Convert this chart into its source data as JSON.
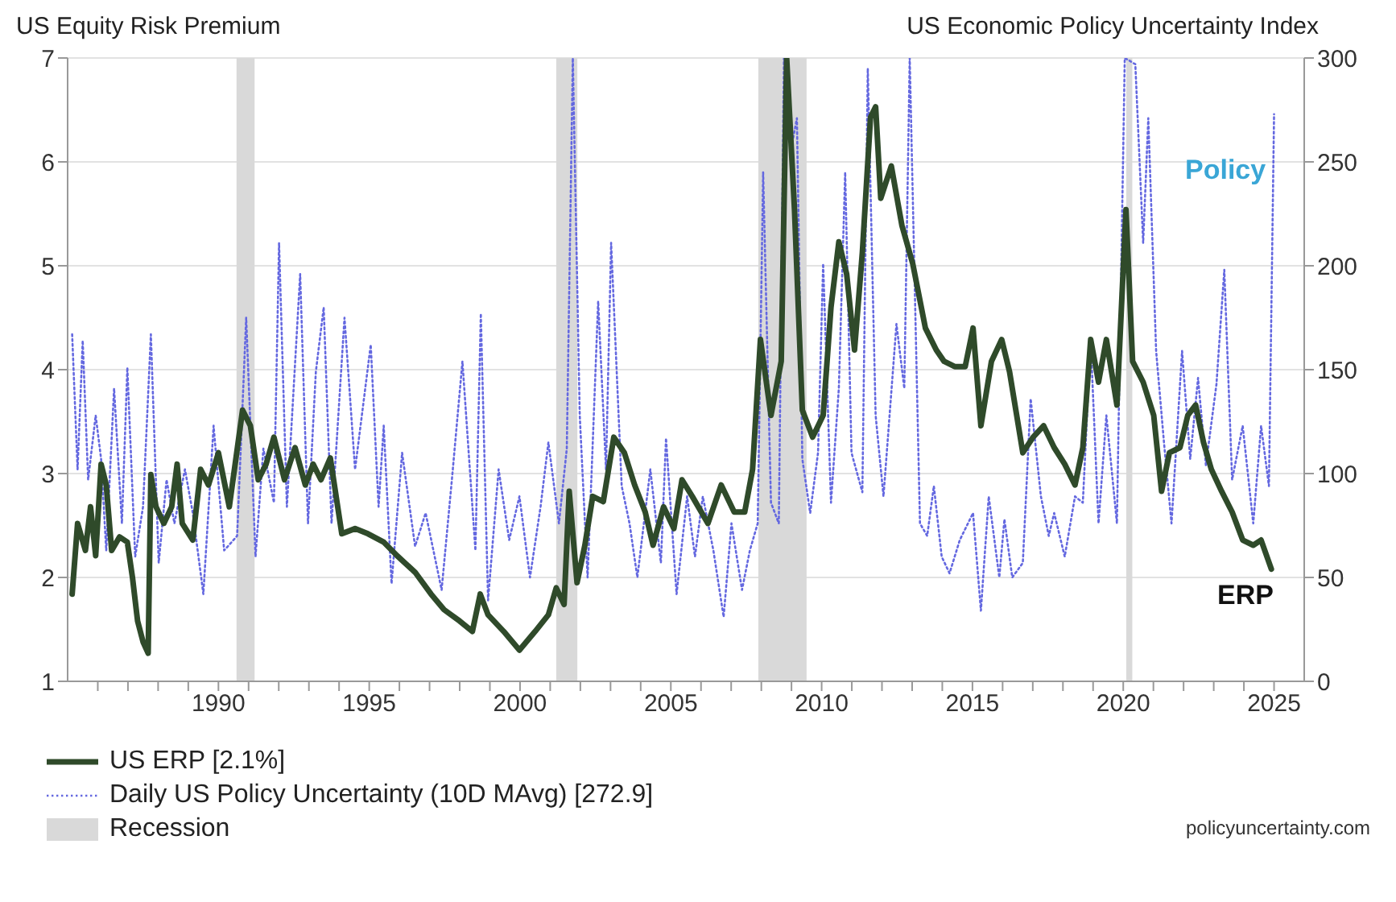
{
  "chart_data": {
    "type": "line",
    "ylabel": "US Equity Risk Premium",
    "y2label": "US Economic Policy Uncertainty Index",
    "xlim": [
      1985,
      2026
    ],
    "xticks": [
      {
        "value": 1986,
        "label": null
      },
      {
        "value": 1987,
        "label": null
      },
      {
        "value": 1988,
        "label": null
      },
      {
        "value": 1989,
        "label": null
      },
      1990,
      {
        "value": 1991,
        "label": null
      },
      {
        "value": 1992,
        "label": null
      },
      {
        "value": 1993,
        "label": null
      },
      {
        "value": 1994,
        "label": null
      },
      1995,
      {
        "value": 1996,
        "label": null
      },
      {
        "value": 1997,
        "label": null
      },
      {
        "value": 1998,
        "label": null
      },
      {
        "value": 1999,
        "label": null
      },
      2000,
      {
        "value": 2001,
        "label": null
      },
      {
        "value": 2002,
        "label": null
      },
      {
        "value": 2003,
        "label": null
      },
      {
        "value": 2004,
        "label": null
      },
      2005,
      {
        "value": 2006,
        "label": null
      },
      {
        "value": 2007,
        "label": null
      },
      {
        "value": 2008,
        "label": null
      },
      {
        "value": 2009,
        "label": null
      },
      2010,
      {
        "value": 2011,
        "label": null
      },
      {
        "value": 2012,
        "label": null
      },
      {
        "value": 2013,
        "label": null
      },
      {
        "value": 2014,
        "label": null
      },
      2015,
      {
        "value": 2016,
        "label": null
      },
      {
        "value": 2017,
        "label": null
      },
      {
        "value": 2018,
        "label": null
      },
      {
        "value": 2019,
        "label": null
      },
      2020,
      {
        "value": 2021,
        "label": null
      },
      {
        "value": 2022,
        "label": null
      },
      {
        "value": 2023,
        "label": null
      },
      {
        "value": 2024,
        "label": null
      },
      2025
    ],
    "ylim": [
      1,
      7
    ],
    "yticks": [
      1,
      2,
      3,
      4,
      5,
      6,
      7
    ],
    "y2lim": [
      0,
      300
    ],
    "y2ticks": [
      0,
      50,
      100,
      150,
      200,
      250,
      300
    ],
    "grid": "y",
    "legend": "bottom",
    "marker": "none",
    "bands": [
      {
        "axis": "x",
        "from": 1990.6,
        "to": 1991.2,
        "label": "Recession",
        "color": "#d9d9d9"
      },
      {
        "axis": "x",
        "from": 2001.2,
        "to": 2001.9,
        "color": "#d9d9d9"
      },
      {
        "axis": "x",
        "from": 2007.9,
        "to": 2009.5,
        "color": "#d9d9d9"
      },
      {
        "axis": "x",
        "from": 2020.1,
        "to": 2020.3,
        "color": "#d9d9d9"
      }
    ],
    "annotations": [
      "Policy",
      "ERP",
      "policyuncertainty.com"
    ],
    "series": [
      {
        "name": "Daily US Policy Uncertainty (10D MAvg) [272.9]",
        "color": "#6468e0",
        "axis": "y2",
        "line_style": "dotted",
        "x": [
          1985.15,
          1985.33,
          1985.5,
          1985.68,
          1985.93,
          1986.11,
          1986.28,
          1986.54,
          1986.8,
          1986.98,
          1987.24,
          1987.5,
          1987.76,
          1988.02,
          1988.28,
          1988.54,
          1988.89,
          1989.15,
          1989.5,
          1989.84,
          1990.19,
          1990.62,
          1990.92,
          1991.23,
          1991.49,
          1991.84,
          1992.01,
          1992.27,
          1992.71,
          1992.97,
          1993.23,
          1993.49,
          1993.75,
          1994.18,
          1994.53,
          1995.05,
          1995.31,
          1995.48,
          1995.74,
          1996.09,
          1996.52,
          1996.87,
          1997.4,
          1997.74,
          1998.09,
          1998.52,
          1998.7,
          1998.94,
          1999.29,
          1999.64,
          1999.98,
          2000.33,
          2000.68,
          2000.94,
          2001.29,
          2001.55,
          2001.75,
          2001.98,
          2002.24,
          2002.59,
          2002.85,
          2003.02,
          2003.37,
          2003.63,
          2003.89,
          2004.32,
          2004.67,
          2004.84,
          2005.19,
          2005.54,
          2005.8,
          2006.06,
          2006.41,
          2006.75,
          2007.01,
          2007.36,
          2007.62,
          2007.88,
          2008.06,
          2008.32,
          2008.58,
          2008.75,
          2009.01,
          2009.18,
          2009.36,
          2009.62,
          2009.88,
          2010.05,
          2010.31,
          2010.57,
          2010.78,
          2010.99,
          2011.35,
          2011.53,
          2011.79,
          2012.05,
          2012.48,
          2012.74,
          2012.92,
          2013.26,
          2013.5,
          2013.72,
          2013.98,
          2014.24,
          2014.58,
          2015.02,
          2015.28,
          2015.54,
          2015.89,
          2016.06,
          2016.32,
          2016.67,
          2016.93,
          2017.27,
          2017.53,
          2017.71,
          2018.06,
          2018.4,
          2018.66,
          2018.92,
          2019.18,
          2019.44,
          2019.79,
          2020.05,
          2020.4,
          2020.66,
          2020.83,
          2021.09,
          2021.35,
          2021.6,
          2021.95,
          2022.22,
          2022.48,
          2022.74,
          2023.09,
          2023.35,
          2023.61,
          2023.96,
          2024.31,
          2024.57,
          2024.83,
          2025.0
        ],
        "values": [
          167,
          102,
          164,
          97,
          128,
          107,
          63,
          141,
          76,
          151,
          60,
          84,
          167,
          57,
          97,
          76,
          102,
          81,
          42,
          123,
          63,
          70,
          175,
          60,
          112,
          86,
          211,
          84,
          196,
          76,
          149,
          180,
          76,
          175,
          102,
          162,
          84,
          123,
          47,
          110,
          65,
          81,
          44,
          97,
          154,
          63,
          177,
          39,
          102,
          68,
          89,
          50,
          84,
          115,
          76,
          112,
          300,
          128,
          50,
          183,
          102,
          211,
          94,
          76,
          50,
          102,
          57,
          117,
          42,
          89,
          60,
          89,
          63,
          31,
          76,
          44,
          63,
          76,
          245,
          86,
          76,
          300,
          258,
          271,
          107,
          81,
          110,
          201,
          86,
          141,
          245,
          110,
          91,
          295,
          128,
          89,
          172,
          141,
          300,
          76,
          70,
          94,
          60,
          52,
          68,
          81,
          34,
          89,
          50,
          78,
          50,
          57,
          136,
          89,
          70,
          81,
          60,
          89,
          86,
          164,
          76,
          128,
          76,
          300,
          297,
          211,
          271,
          159,
          115,
          76,
          159,
          107,
          146,
          104,
          143,
          198,
          97,
          123,
          76,
          123,
          94,
          272.9
        ]
      },
      {
        "name": "US ERP [2.1%]",
        "color": "#2f4a2a",
        "axis": "y",
        "line_style": "solid",
        "x": [
          1985.15,
          1985.33,
          1985.59,
          1985.76,
          1985.93,
          1986.11,
          1986.28,
          1986.46,
          1986.72,
          1986.98,
          1987.15,
          1987.32,
          1987.5,
          1987.67,
          1987.76,
          1987.93,
          1988.19,
          1988.45,
          1988.63,
          1988.8,
          1989.15,
          1989.41,
          1989.67,
          1990.0,
          1990.36,
          1990.8,
          1991.06,
          1991.32,
          1991.58,
          1991.84,
          1992.19,
          1992.54,
          1992.88,
          1993.14,
          1993.4,
          1993.71,
          1994.09,
          1994.53,
          1994.96,
          1995.48,
          1995.92,
          1996.52,
          1997.05,
          1997.48,
          1998.0,
          1998.42,
          1998.68,
          1998.94,
          1999.46,
          1999.98,
          2000.5,
          2000.94,
          2001.2,
          2001.46,
          2001.63,
          2001.89,
          2002.15,
          2002.41,
          2002.76,
          2003.11,
          2003.46,
          2003.8,
          2004.15,
          2004.41,
          2004.76,
          2005.1,
          2005.37,
          2005.71,
          2006.23,
          2006.67,
          2007.1,
          2007.45,
          2007.71,
          2007.97,
          2008.32,
          2008.66,
          2008.84,
          2009.1,
          2009.36,
          2009.7,
          2010.05,
          2010.31,
          2010.57,
          2010.83,
          2011.09,
          2011.35,
          2011.62,
          2011.79,
          2011.96,
          2012.31,
          2012.66,
          2013.02,
          2013.44,
          2013.8,
          2014.06,
          2014.41,
          2014.76,
          2015.02,
          2015.28,
          2015.63,
          2015.97,
          2016.23,
          2016.67,
          2017.01,
          2017.36,
          2017.71,
          2018.06,
          2018.4,
          2018.66,
          2018.92,
          2019.18,
          2019.44,
          2019.79,
          2020.09,
          2020.31,
          2020.66,
          2021.01,
          2021.27,
          2021.53,
          2021.88,
          2022.14,
          2022.4,
          2022.66,
          2022.92,
          2023.26,
          2023.61,
          2023.96,
          2024.31,
          2024.57,
          2024.91
        ],
        "values": [
          1.84,
          2.52,
          2.26,
          2.68,
          2.21,
          3.09,
          2.89,
          2.26,
          2.39,
          2.34,
          2.0,
          1.58,
          1.38,
          1.27,
          2.99,
          2.68,
          2.52,
          2.68,
          3.09,
          2.52,
          2.36,
          3.04,
          2.89,
          3.2,
          2.68,
          3.61,
          3.46,
          2.94,
          3.09,
          3.35,
          2.94,
          3.25,
          2.89,
          3.09,
          2.94,
          3.15,
          2.42,
          2.47,
          2.42,
          2.34,
          2.21,
          2.05,
          1.84,
          1.69,
          1.58,
          1.48,
          1.84,
          1.64,
          1.48,
          1.3,
          1.48,
          1.64,
          1.9,
          1.74,
          2.83,
          1.95,
          2.31,
          2.78,
          2.73,
          3.35,
          3.2,
          2.89,
          2.63,
          2.31,
          2.68,
          2.47,
          2.94,
          2.78,
          2.52,
          2.89,
          2.63,
          2.63,
          3.04,
          4.29,
          3.56,
          4.08,
          7.0,
          5.54,
          3.61,
          3.35,
          3.56,
          4.6,
          5.23,
          4.92,
          4.19,
          5.13,
          6.43,
          6.53,
          5.65,
          5.96,
          5.39,
          5.02,
          4.4,
          4.19,
          4.08,
          4.03,
          4.03,
          4.4,
          3.46,
          4.08,
          4.29,
          3.98,
          3.2,
          3.35,
          3.46,
          3.25,
          3.09,
          2.89,
          3.25,
          4.29,
          3.88,
          4.29,
          3.66,
          5.54,
          4.08,
          3.88,
          3.56,
          2.83,
          3.2,
          3.25,
          3.56,
          3.66,
          3.3,
          3.04,
          2.83,
          2.63,
          2.36,
          2.31,
          2.36,
          2.08
        ]
      }
    ]
  }
}
